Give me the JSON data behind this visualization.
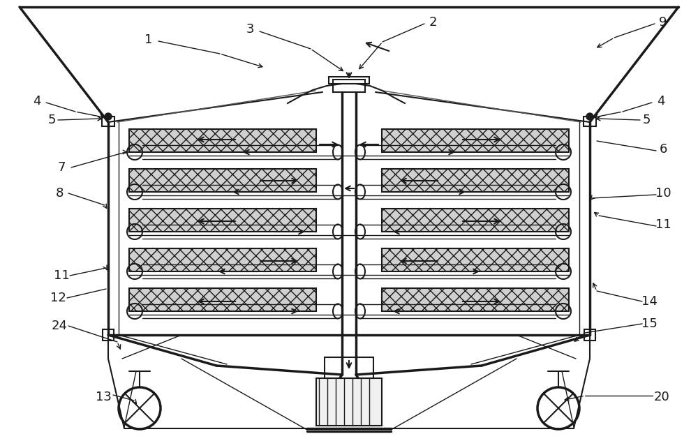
{
  "bg_color": "#ffffff",
  "line_color": "#1a1a1a",
  "label_color": "#000000",
  "fig_width": 10.0,
  "fig_height": 6.32
}
